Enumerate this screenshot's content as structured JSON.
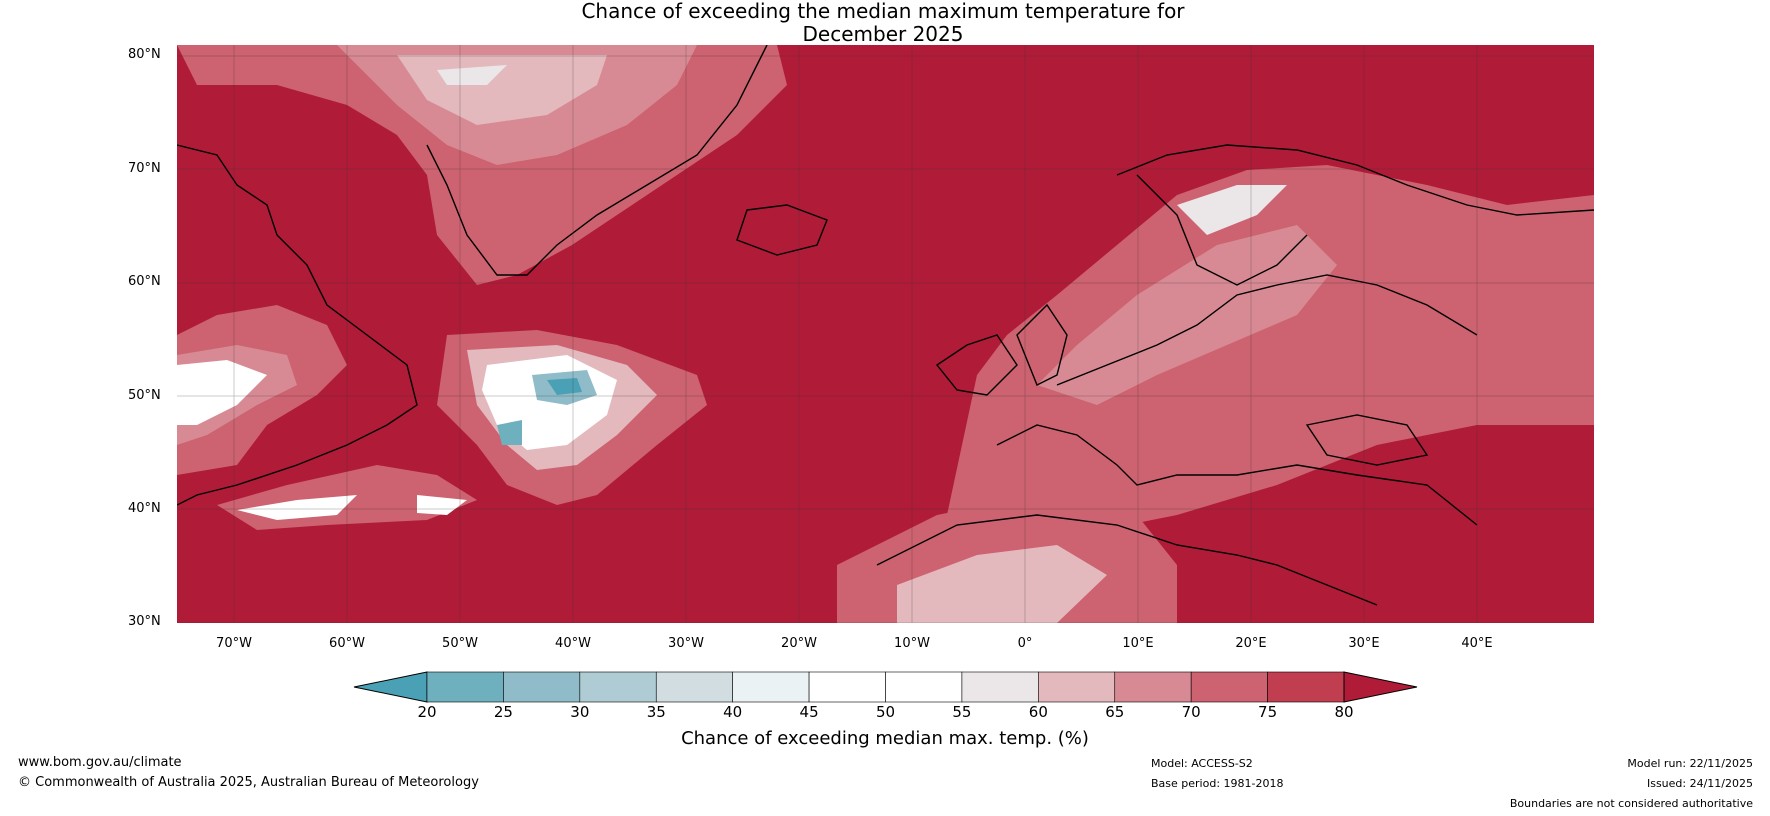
{
  "title": {
    "line1": "Chance of exceeding the median maximum temperature for",
    "line2": "December 2025"
  },
  "map": {
    "lat_labels": [
      "80°N",
      "70°N",
      "60°N",
      "50°N",
      "40°N",
      "30°N"
    ],
    "lon_labels": [
      "70°W",
      "60°W",
      "50°W",
      "40°W",
      "30°W",
      "20°W",
      "10°W",
      "0°",
      "10°E",
      "20°E",
      "30°E",
      "40°E"
    ],
    "lat_range": [
      30,
      81
    ],
    "lon_range": [
      -75,
      50
    ]
  },
  "colorbar": {
    "title": "Chance of exceeding median max. temp. (%)",
    "ticks": [
      "20",
      "25",
      "30",
      "35",
      "40",
      "45",
      "50",
      "55",
      "60",
      "65",
      "70",
      "75",
      "80"
    ],
    "colors": [
      "#4aa0b4",
      "#6fb0be",
      "#8fbcc8",
      "#afccd4",
      "#d1dde1",
      "#eaf2f4",
      "#ffffff",
      "#ffffff",
      "#ebe7e8",
      "#e3b9be",
      "#d88a94",
      "#cd6270",
      "#c03e50",
      "#b01b38"
    ]
  },
  "colors": {
    "high": "#b01b38",
    "mid_high": "#cd6270",
    "low_mid": "#e3b9be",
    "neutral": "#ffffff",
    "low": "#4aa0b4",
    "coast": "#000000",
    "border": "#808080"
  },
  "footer": {
    "url": "www.bom.gov.au/climate",
    "copyright": "© Commonwealth of Australia 2025, Australian Bureau of Meteorology",
    "model": "Model: ACCESS-S2",
    "base_period": "Base period: 1981-2018",
    "model_run": "Model run: 22/11/2025",
    "issued": "Issued: 24/11/2025",
    "disclaimer": "Boundaries are not considered authoritative"
  }
}
